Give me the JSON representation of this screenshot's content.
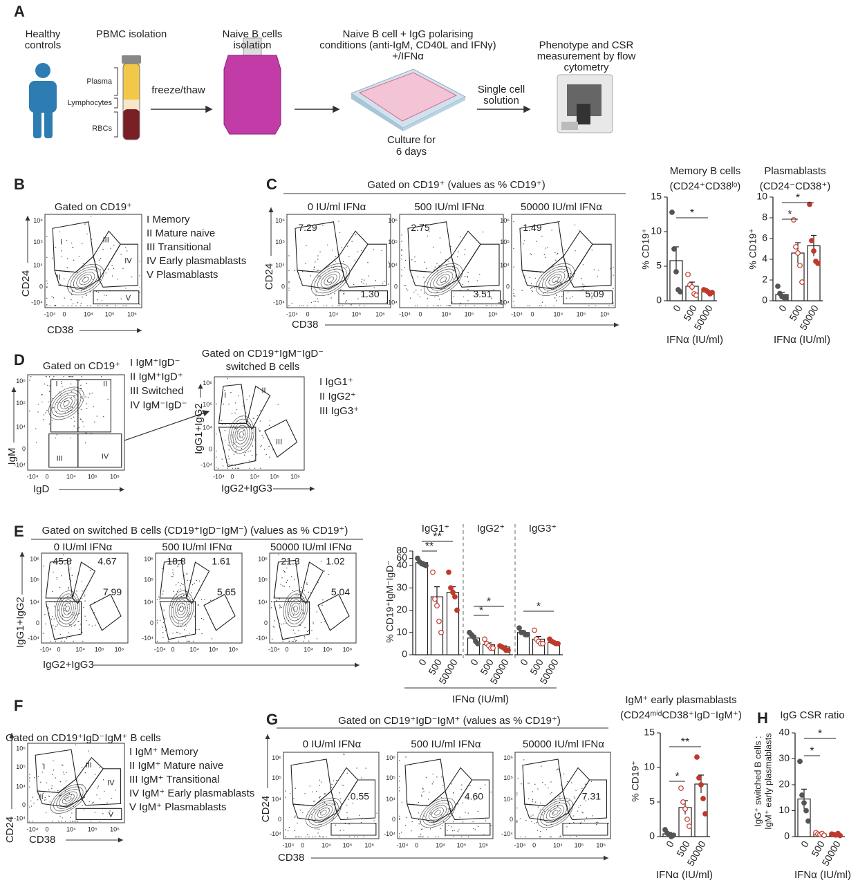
{
  "panels": {
    "labels": [
      "A",
      "B",
      "C",
      "D",
      "E",
      "F",
      "G",
      "H"
    ]
  },
  "flow_ticks": [
    "-10⁴",
    "0",
    "10⁴",
    "10⁵",
    "10⁶"
  ],
  "panel_a": {
    "steps": [
      [
        "Healthy",
        "controls"
      ],
      [
        "PBMC isolation"
      ],
      [
        "Naive B cells",
        "isolation"
      ],
      [
        "Naive B cell + IgG polarising",
        "conditions (anti-IgM, CD40L and IFNγ)",
        "+/IFNα"
      ],
      [
        "Phenotype and CSR",
        "measurement by flow",
        "cytometry"
      ]
    ],
    "tube_layers": [
      "Plasma",
      "Lymphocytes",
      "RBCs"
    ],
    "arrows": [
      [
        "freeze/thaw"
      ],
      [
        "Single cell",
        "solution"
      ]
    ],
    "culture": [
      "Culture for",
      "6 days"
    ]
  },
  "panel_b": {
    "title": "Gated on CD19⁺",
    "legend": [
      "I   Memory",
      "II  Mature naive",
      "III Transitional",
      "IV Early plasmablasts",
      "V  Plasmablasts"
    ],
    "gates": [
      "I",
      "II",
      "III",
      "IV",
      "V"
    ],
    "x_label": "CD38",
    "y_label": "CD24"
  },
  "panel_c": {
    "header": "Gated on CD19⁺ (values as % CD19⁺)",
    "plots": [
      {
        "title": "0 IU/ml IFNα",
        "values": [
          "7.29",
          "1.30"
        ]
      },
      {
        "title": "500 IU/ml IFNα",
        "values": [
          "2.75",
          "3.51"
        ]
      },
      {
        "title": "50000 IU/ml IFNα",
        "values": [
          "1.49",
          "5.09"
        ]
      }
    ],
    "x_label": "CD38",
    "y_label": "CD24"
  },
  "panel_d": {
    "plot1": {
      "title": "Gated on CD19⁺",
      "legend": [
        "I   IgM⁺IgD⁻",
        "II  IgM⁺IgD⁺",
        "III Switched",
        "IV IgM⁻IgD⁻"
      ],
      "gates": [
        "I",
        "II",
        "III",
        "IV"
      ],
      "x_label": "IgD",
      "y_label": "IgM"
    },
    "plot2": {
      "title": [
        "Gated on CD19⁺IgM⁻IgD⁻",
        "switched B cells"
      ],
      "legend": [
        "I   IgG1⁺",
        "II  IgG2⁺",
        "III IgG3⁺"
      ],
      "gates": [
        "I",
        "II",
        "III"
      ],
      "x_label": "IgG2+IgG3",
      "y_label": "IgG1+IgG2"
    }
  },
  "panel_e": {
    "header": "Gated on switched B cells (CD19⁺IgD⁻IgM⁻) (values as % CD19⁺)",
    "plots": [
      {
        "title": "0 IU/ml IFNα",
        "values": [
          "45.8",
          "4.67",
          "7.99"
        ]
      },
      {
        "title": "500 IU/ml IFNα",
        "values": [
          "18.8",
          "1.61",
          "5.65"
        ]
      },
      {
        "title": "50000 IU/ml IFNα",
        "values": [
          "21.3",
          "1.02",
          "5.04"
        ]
      }
    ],
    "x_label": "IgG2+IgG3",
    "y_label": "IgG1+IgG2"
  },
  "panel_f": {
    "title": "Gated on CD19⁺IgD⁻IgM⁺ B cells",
    "legend": [
      "I   IgM⁺ Memory",
      "II  IgM⁺ Mature naive",
      "III IgM⁺ Transitional",
      "IV IgM⁺ Early plasmablasts",
      "V  IgM⁺ Plasmablasts"
    ],
    "gates": [
      "I",
      "II",
      "III",
      "IV",
      "V"
    ],
    "x_label": "CD38",
    "y_label": "CD24"
  },
  "panel_g": {
    "header": "Gated on CD19⁺IgD⁻IgM⁺ (values as % CD19⁺)",
    "plots": [
      {
        "title": "0 IU/ml IFNα",
        "values": [
          "0.55"
        ]
      },
      {
        "title": "500 IU/ml IFNα",
        "values": [
          "4.60"
        ]
      },
      {
        "title": "50000 IU/ml IFNα",
        "values": [
          "7.31"
        ]
      }
    ],
    "x_label": "CD38",
    "y_label": "CD24"
  },
  "chart_data": [
    {
      "type": "bar",
      "title": "Memory B cells",
      "subtitle": "(CD24⁺CD38ˡᵒ)",
      "categories": [
        "0",
        "500",
        "50000"
      ],
      "values": [
        5.8,
        2.1,
        1.3
      ],
      "errors": [
        2.0,
        0.6,
        0.1
      ],
      "points": [
        [
          12.8,
          7.5,
          4.2,
          1.6,
          1.3
        ],
        [
          3.8,
          2.3,
          2.0,
          1.0,
          0.8
        ],
        [
          1.6,
          1.5,
          1.3,
          1.0,
          1.2
        ]
      ],
      "color": "#ffffff",
      "point_colors": [
        "#555555",
        "#c0392b",
        "#c0392b"
      ],
      "point_style": [
        "filled",
        "open",
        "filled"
      ],
      "ylim": [
        0,
        15
      ],
      "yticks": [
        0,
        5,
        10,
        15
      ],
      "x_label": "IFNα (IU/ml)",
      "y_label": "% CD19⁺",
      "annotations": [
        "*"
      ]
    },
    {
      "type": "bar",
      "title": "Plasmablasts",
      "subtitle": "(CD24⁻CD38⁺)",
      "categories": [
        "0",
        "500",
        "50000"
      ],
      "values": [
        0.6,
        4.6,
        5.3
      ],
      "errors": [
        0.2,
        1.0,
        1.0
      ],
      "points": [
        [
          1.4,
          0.7,
          0.4,
          0.3,
          0.3
        ],
        [
          7.8,
          5.2,
          4.6,
          3.4,
          1.8
        ],
        [
          9.3,
          5.8,
          4.8,
          3.8,
          3.6
        ]
      ],
      "color": "#ffffff",
      "point_colors": [
        "#555555",
        "#c0392b",
        "#c0392b"
      ],
      "point_style": [
        "filled",
        "open",
        "filled"
      ],
      "ylim": [
        0,
        10
      ],
      "yticks": [
        0,
        2,
        4,
        6,
        8,
        10
      ],
      "x_label": "IFNα (IU/ml)",
      "y_label": "% CD19⁺",
      "annotations": [
        "*",
        "*"
      ]
    },
    {
      "type": "bar",
      "categories": [
        "0",
        "500",
        "50000"
      ],
      "ybreak": 40,
      "series": [
        {
          "name": "IgG1⁺",
          "values": [
            48,
            26,
            28
          ],
          "errors": [
            3,
            4.5,
            2.5
          ],
          "points": [
            [
              60,
              50,
              45,
              43,
              40
            ],
            [
              37,
              25,
              22,
              15,
              10
            ],
            [
              37,
              30,
              28,
              26,
              20
            ]
          ],
          "annotations": [
            "**",
            "**"
          ]
        },
        {
          "name": "IgG2⁺",
          "values": [
            7.5,
            4.5,
            3.5
          ],
          "errors": [
            1.2,
            0.8,
            0.5
          ],
          "points": [
            [
              10,
              9,
              8,
              6,
              5
            ],
            [
              7,
              5,
              4,
              3,
              3
            ],
            [
              4,
              3.5,
              3,
              2,
              2
            ]
          ],
          "annotations": [
            "*",
            "*"
          ]
        },
        {
          "name": "IgG3⁺",
          "values": [
            10,
            7,
            5.5
          ],
          "errors": [
            0.6,
            1.2,
            0.4
          ],
          "points": [
            [
              12,
              10,
              10,
              9,
              9
            ],
            [
              11,
              7,
              6,
              5,
              5
            ],
            [
              7,
              6,
              5.5,
              5,
              5
            ]
          ],
          "annotations": [
            "*"
          ]
        }
      ],
      "color": "#ffffff",
      "point_colors": [
        "#555555",
        "#c0392b",
        "#c0392b"
      ],
      "point_style": [
        "filled",
        "open",
        "filled"
      ],
      "ylim": [
        0,
        80
      ],
      "yticks": [
        0,
        10,
        20,
        30,
        40,
        60,
        80
      ],
      "x_label": "IFNα (IU/ml)",
      "y_label": "% CD19⁺IgM⁻IgD⁻"
    },
    {
      "type": "bar",
      "title": "IgM⁺ early plasmablasts",
      "subtitle": "(CD24ᵐⁱᵈCD38⁺IgD⁻IgM⁺)",
      "categories": [
        "0",
        "500",
        "50000"
      ],
      "values": [
        0.4,
        4.2,
        7.6
      ],
      "errors": [
        0.2,
        1.0,
        1.3
      ],
      "points": [
        [
          1,
          0.5,
          0.3,
          0,
          0.2
        ],
        [
          7,
          5,
          4,
          2.5,
          1.5
        ],
        [
          11.5,
          8.5,
          7.5,
          5.5,
          3.3
        ]
      ],
      "color": "#ffffff",
      "point_colors": [
        "#555555",
        "#c0392b",
        "#c0392b"
      ],
      "point_style": [
        "filled",
        "open",
        "filled"
      ],
      "ylim": [
        0,
        15
      ],
      "yticks": [
        0,
        5,
        10,
        15
      ],
      "x_label": "IFNα (IU/ml)",
      "y_label": "% CD19⁺",
      "annotations": [
        "*",
        "**"
      ]
    },
    {
      "type": "bar",
      "title": "IgG CSR ratio",
      "categories": [
        "0",
        "500",
        "50000"
      ],
      "values": [
        14.5,
        1,
        0.8
      ],
      "errors": [
        3.8,
        0.3,
        0.2
      ],
      "points": [
        [
          29,
          16,
          13,
          10,
          6
        ],
        [
          1.5,
          1,
          0.8,
          1.2,
          0.5
        ],
        [
          1,
          0.8,
          0.6,
          1.2,
          0.4
        ]
      ],
      "color": "#ffffff",
      "point_colors": [
        "#555555",
        "#c0392b",
        "#c0392b"
      ],
      "point_style": [
        "filled",
        "open",
        "filled"
      ],
      "ylim": [
        0,
        40
      ],
      "yticks": [
        0,
        10,
        20,
        30,
        40
      ],
      "x_label": "IFNα (IU/ml)",
      "y_label": [
        "IgG⁺ switched B cells :",
        "IgM⁺ early plasmablasts"
      ],
      "annotations": [
        "*",
        "*"
      ]
    }
  ]
}
